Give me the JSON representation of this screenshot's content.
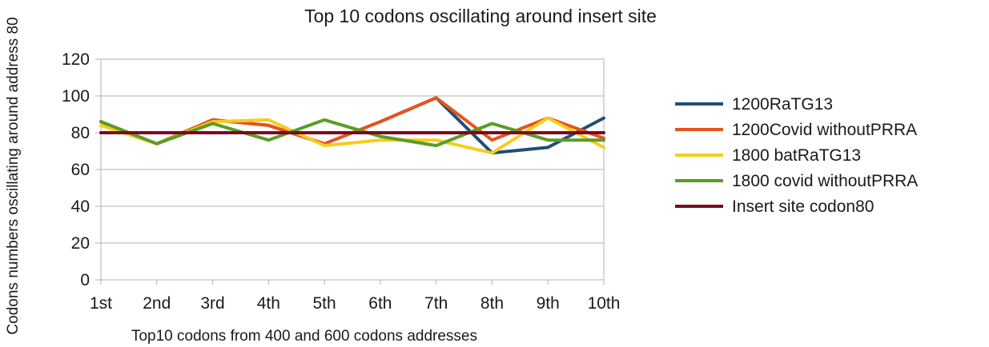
{
  "chart_data": {
    "type": "line",
    "title": "Top 10 codons oscillating around insert site",
    "xlabel": "Top10 codons from 400 and 600 codons addresses",
    "ylabel": "Codons numbers oscillating around address 80",
    "categories": [
      "1st",
      "2nd",
      "3rd",
      "4th",
      "5th",
      "6th",
      "7th",
      "8th",
      "9th",
      "10th"
    ],
    "ylim": [
      0,
      120
    ],
    "yticks": [
      0,
      20,
      40,
      60,
      80,
      100,
      120
    ],
    "grid": "horizontal",
    "legend_position": "right",
    "series": [
      {
        "name": "1200RaTG13",
        "color": "#1f4e79",
        "values": [
          86,
          74,
          87,
          84,
          74,
          86,
          99,
          69,
          72,
          88
        ]
      },
      {
        "name": "1200Covid withoutPRRA",
        "color": "#e8541c",
        "values": [
          86,
          74,
          87,
          84,
          74,
          86,
          99,
          76,
          88,
          77
        ]
      },
      {
        "name": "1800 batRaTG13",
        "color": "#f6cd1c",
        "values": [
          84,
          74,
          86,
          87,
          73,
          76,
          76,
          69,
          88,
          72
        ]
      },
      {
        "name": "1800 covid withoutPRRA",
        "color": "#5a9c27",
        "values": [
          86,
          74,
          85,
          76,
          87,
          78,
          73,
          85,
          76,
          76
        ]
      },
      {
        "name": "Insert site codon80",
        "color": "#7b0b1f",
        "values": [
          80,
          80,
          80,
          80,
          80,
          80,
          80,
          80,
          80,
          80
        ]
      }
    ]
  }
}
